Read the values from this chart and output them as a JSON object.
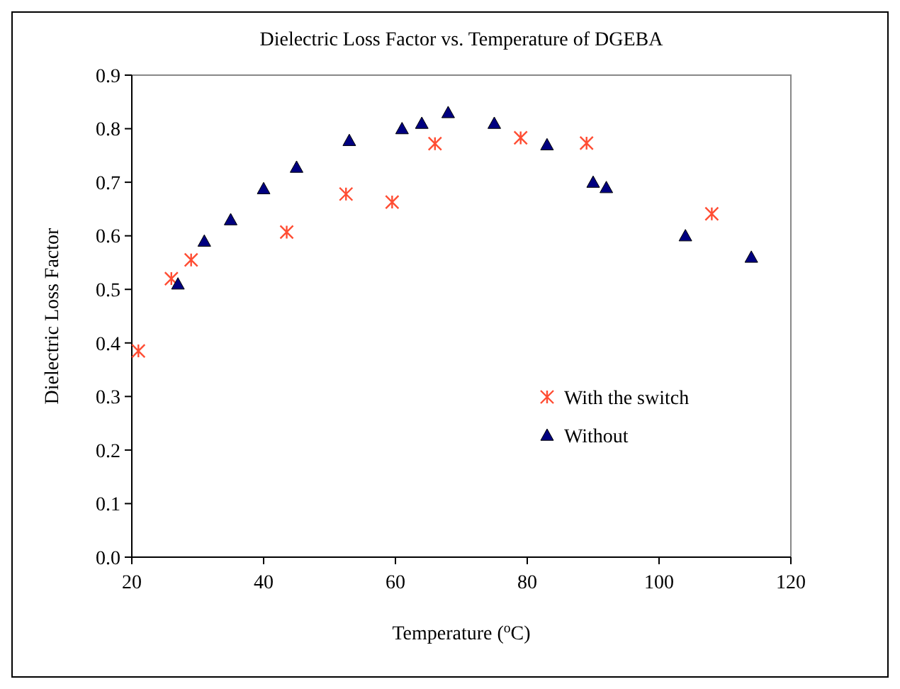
{
  "chart_data": {
    "type": "scatter",
    "title": "Dielectric Loss Factor vs. Temperature of DGEBA",
    "xlabel": "Temperature ($^{o}$C)",
    "ylabel": "Dielectric Loss Factor",
    "xlim": [
      20,
      120
    ],
    "xticks": [
      20,
      40,
      60,
      80,
      100,
      120
    ],
    "ylim": [
      0,
      0.9
    ],
    "yticks": [
      {
        "value": 0,
        "label": "0.0"
      },
      0.1,
      0.2,
      0.3,
      0.4,
      0.5,
      0.6,
      0.7,
      0.8,
      0.9
    ],
    "grid": false,
    "legend": "right",
    "series": [
      {
        "name": "With the switch",
        "color": "#ff4d33",
        "marker": "cross",
        "x": [
          21,
          26,
          29,
          43.5,
          52.5,
          59.5,
          66,
          79,
          89,
          108
        ],
        "values": [
          0.385,
          0.52,
          0.555,
          0.607,
          0.678,
          0.663,
          0.772,
          0.783,
          0.773,
          0.641
        ]
      },
      {
        "name": "Without",
        "color": "#000080",
        "marker": "triangle",
        "x": [
          27,
          31,
          35,
          40,
          45,
          53,
          61,
          64,
          68,
          75,
          83,
          90,
          92,
          104,
          114
        ],
        "values": [
          0.51,
          0.59,
          0.63,
          0.688,
          0.728,
          0.778,
          0.8,
          0.81,
          0.83,
          0.81,
          0.77,
          0.7,
          0.69,
          0.6,
          0.56
        ]
      }
    ]
  }
}
